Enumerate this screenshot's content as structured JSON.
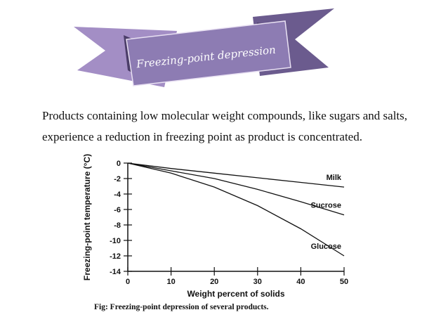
{
  "banner": {
    "title": "Freezing-point depression",
    "colors": {
      "light": "#a38ec5",
      "dark": "#6b5b8e",
      "fold": "#4b3d68"
    }
  },
  "body": {
    "paragraph": "Products containing low molecular weight compounds, like sugars and salts, experience a reduction in freezing point as product is concentrated."
  },
  "chart_data": {
    "type": "line",
    "xlabel": "Weight percent of solids",
    "ylabel": "Freezing-point temperature (°C)",
    "xlim": [
      0,
      50
    ],
    "ylim": [
      -14,
      0
    ],
    "xticks": [
      0,
      10,
      20,
      30,
      40,
      50
    ],
    "yticks": [
      0,
      -2,
      -4,
      -6,
      -8,
      -10,
      -12,
      -14
    ],
    "grid": false,
    "caption": "Fig: Freezing-point depression of several products.",
    "series": [
      {
        "name": "Milk",
        "x": [
          0,
          10,
          20,
          30,
          40,
          50
        ],
        "y": [
          0,
          -0.7,
          -1.3,
          -1.9,
          -2.5,
          -3.1
        ]
      },
      {
        "name": "Sucrose",
        "x": [
          0,
          10,
          20,
          30,
          40,
          50
        ],
        "y": [
          0,
          -1.0,
          -2.0,
          -3.4,
          -5.0,
          -6.7
        ]
      },
      {
        "name": "Glucose",
        "x": [
          0,
          10,
          20,
          30,
          40,
          50
        ],
        "y": [
          0,
          -1.3,
          -3.1,
          -5.5,
          -8.5,
          -12.0
        ]
      }
    ]
  }
}
